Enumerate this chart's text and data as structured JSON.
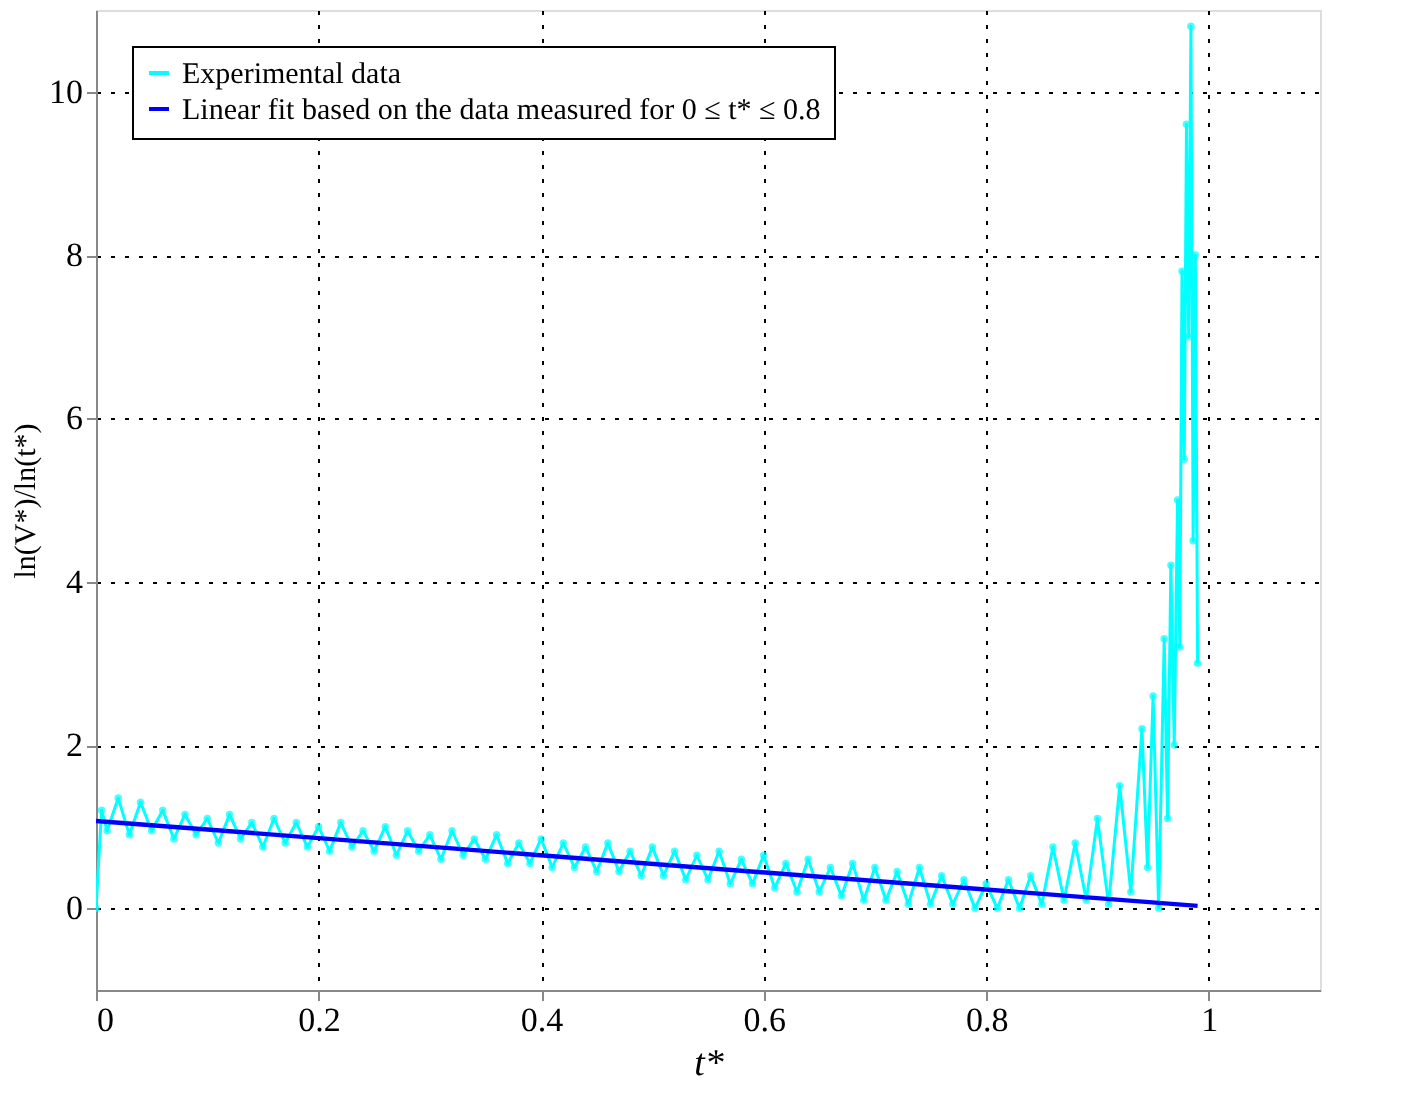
{
  "chart_data": {
    "type": "line",
    "xlabel": "t*",
    "ylabel": "ln(V*)/ln(t*)",
    "xlim": [
      0,
      1.1
    ],
    "ylim": [
      -1,
      11
    ],
    "xticks": [
      0,
      0.2,
      0.4,
      0.6,
      0.8,
      1
    ],
    "yticks": [
      0,
      2,
      4,
      6,
      8,
      10
    ],
    "grid": true,
    "legend": "top left",
    "series": [
      {
        "name": "Experimental data",
        "color": "#00ffff",
        "marker": "circle",
        "x": [
          0,
          0.005,
          0.01,
          0.02,
          0.03,
          0.04,
          0.05,
          0.06,
          0.07,
          0.08,
          0.09,
          0.1,
          0.11,
          0.12,
          0.13,
          0.14,
          0.15,
          0.16,
          0.17,
          0.18,
          0.19,
          0.2,
          0.21,
          0.22,
          0.23,
          0.24,
          0.25,
          0.26,
          0.27,
          0.28,
          0.29,
          0.3,
          0.31,
          0.32,
          0.33,
          0.34,
          0.35,
          0.36,
          0.37,
          0.38,
          0.39,
          0.4,
          0.41,
          0.42,
          0.43,
          0.44,
          0.45,
          0.46,
          0.47,
          0.48,
          0.49,
          0.5,
          0.51,
          0.52,
          0.53,
          0.54,
          0.55,
          0.56,
          0.57,
          0.58,
          0.59,
          0.6,
          0.61,
          0.62,
          0.63,
          0.64,
          0.65,
          0.66,
          0.67,
          0.68,
          0.69,
          0.7,
          0.71,
          0.72,
          0.73,
          0.74,
          0.75,
          0.76,
          0.77,
          0.78,
          0.79,
          0.8,
          0.81,
          0.82,
          0.83,
          0.84,
          0.85,
          0.86,
          0.87,
          0.88,
          0.89,
          0.9,
          0.91,
          0.92,
          0.93,
          0.94,
          0.945,
          0.95,
          0.955,
          0.96,
          0.963,
          0.966,
          0.969,
          0.972,
          0.974,
          0.976,
          0.978,
          0.98,
          0.982,
          0.984,
          0.986,
          0.988,
          0.99
        ],
        "values": [
          0,
          1.2,
          0.95,
          1.35,
          0.9,
          1.3,
          0.95,
          1.2,
          0.85,
          1.15,
          0.9,
          1.1,
          0.8,
          1.15,
          0.85,
          1.05,
          0.75,
          1.1,
          0.8,
          1.05,
          0.75,
          1.0,
          0.7,
          1.05,
          0.75,
          0.95,
          0.7,
          1.0,
          0.65,
          0.95,
          0.7,
          0.9,
          0.6,
          0.95,
          0.65,
          0.85,
          0.6,
          0.9,
          0.55,
          0.8,
          0.55,
          0.85,
          0.5,
          0.8,
          0.5,
          0.75,
          0.45,
          0.8,
          0.45,
          0.7,
          0.4,
          0.75,
          0.4,
          0.7,
          0.35,
          0.65,
          0.35,
          0.7,
          0.3,
          0.6,
          0.3,
          0.65,
          0.25,
          0.55,
          0.2,
          0.6,
          0.2,
          0.5,
          0.15,
          0.55,
          0.1,
          0.5,
          0.1,
          0.45,
          0.05,
          0.5,
          0.05,
          0.4,
          0.05,
          0.35,
          0.0,
          0.3,
          0.0,
          0.35,
          0.0,
          0.4,
          0.05,
          0.75,
          0.1,
          0.8,
          0.1,
          1.1,
          0.05,
          1.5,
          0.2,
          2.2,
          0.5,
          2.6,
          0.0,
          3.3,
          1.1,
          4.2,
          2.0,
          5.0,
          3.2,
          7.8,
          5.5,
          9.6,
          7.0,
          10.8,
          4.5,
          8.0,
          3.0
        ]
      },
      {
        "name": "Linear fit based on the data measured for 0 ≤ t* ≤ 0.8",
        "color": "#0000ff",
        "marker": "none",
        "x": [
          0,
          0.99
        ],
        "values": [
          1.07,
          0.03
        ]
      }
    ]
  }
}
